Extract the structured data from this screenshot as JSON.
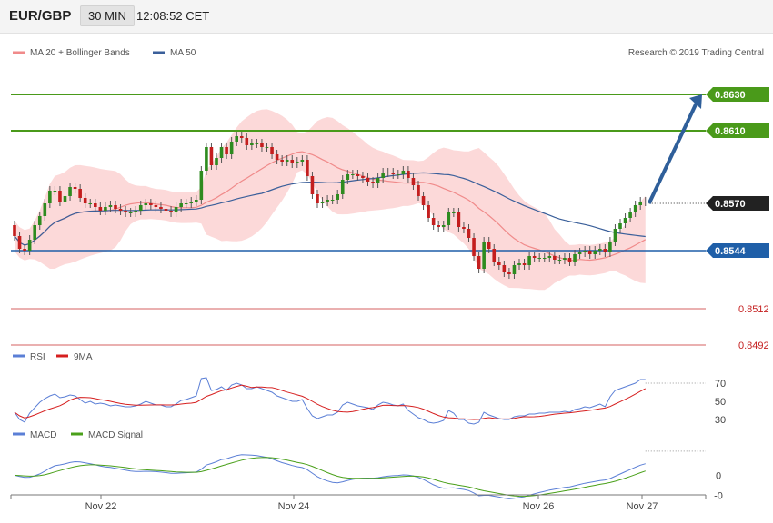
{
  "header": {
    "symbol": "EUR/GBP",
    "timeframe": "30 MIN",
    "time": "12:08:52 CET"
  },
  "legend": {
    "main": [
      {
        "label": "MA 20 + Bollinger Bands",
        "color": "#f08a8a"
      },
      {
        "label": "MA 50",
        "color": "#3a5f9a"
      }
    ],
    "copyright": "Research © 2019 Trading Central",
    "rsi": [
      {
        "label": "RSI",
        "color": "#5b7fd6"
      },
      {
        "label": "9MA",
        "color": "#d61f1f"
      }
    ],
    "macd": [
      {
        "label": "MACD",
        "color": "#5b7fd6"
      },
      {
        "label": "MACD Signal",
        "color": "#4aa01a"
      }
    ]
  },
  "x_labels": [
    "Nov 22",
    "Nov 24",
    "Nov 26",
    "Nov 27"
  ],
  "colors": {
    "bull": "#2e8b1f",
    "bear": "#c41e1e",
    "band": "#fbd2d2",
    "ma20": "#f08a8a",
    "ma50": "#3a5f9a",
    "resistance": "#4a9a1a",
    "pivot": "#1f5fa8",
    "support": "#c41e1e",
    "last": "#222222",
    "arrow": "#2f5f9a"
  },
  "chart_data": {
    "type": "candlestick",
    "ylim": [
      0.8482,
      0.8643
    ],
    "levels": [
      {
        "type": "resistance",
        "value": 0.863,
        "label": "0.8630"
      },
      {
        "type": "resistance",
        "value": 0.861,
        "label": "0.8610"
      },
      {
        "type": "last",
        "value": 0.857,
        "label": "0.8570"
      },
      {
        "type": "pivot",
        "value": 0.8544,
        "label": "0.8544"
      },
      {
        "type": "support",
        "value": 0.8512,
        "label": "0.8512"
      },
      {
        "type": "support",
        "value": 0.8492,
        "label": "0.8492"
      }
    ],
    "forecast_arrow": {
      "from": 0.857,
      "to": 0.863
    },
    "closes": [
      0.8552,
      0.8545,
      0.8544,
      0.855,
      0.8558,
      0.8563,
      0.857,
      0.8577,
      0.8577,
      0.8571,
      0.8574,
      0.8579,
      0.8578,
      0.8573,
      0.857,
      0.857,
      0.8568,
      0.8566,
      0.8568,
      0.8569,
      0.8567,
      0.8566,
      0.8565,
      0.8565,
      0.8566,
      0.8569,
      0.857,
      0.8569,
      0.8568,
      0.8567,
      0.8566,
      0.8565,
      0.8568,
      0.857,
      0.857,
      0.8571,
      0.8572,
      0.8588,
      0.8601,
      0.8591,
      0.8595,
      0.8601,
      0.8597,
      0.8604,
      0.8607,
      0.8606,
      0.8602,
      0.8603,
      0.8603,
      0.8601,
      0.8601,
      0.8597,
      0.8594,
      0.8593,
      0.8594,
      0.8592,
      0.8593,
      0.8594,
      0.8585,
      0.8575,
      0.857,
      0.8571,
      0.8572,
      0.8572,
      0.8575,
      0.8583,
      0.8586,
      0.8586,
      0.8585,
      0.8584,
      0.8582,
      0.8581,
      0.8584,
      0.8587,
      0.8587,
      0.8586,
      0.8586,
      0.8588,
      0.8584,
      0.858,
      0.8574,
      0.8569,
      0.8562,
      0.8558,
      0.8557,
      0.8558,
      0.8565,
      0.8565,
      0.8557,
      0.8556,
      0.8551,
      0.8541,
      0.8534,
      0.8549,
      0.8545,
      0.8538,
      0.8536,
      0.8532,
      0.8531,
      0.8536,
      0.8537,
      0.8536,
      0.8541,
      0.854,
      0.854,
      0.854,
      0.8541,
      0.8539,
      0.8539,
      0.854,
      0.8538,
      0.8542,
      0.8543,
      0.8544,
      0.8542,
      0.8544,
      0.8545,
      0.8543,
      0.8549,
      0.8556,
      0.8559,
      0.8562,
      0.8565,
      0.8569,
      0.8571,
      0.8571
    ],
    "rsi": {
      "ylim": [
        18,
        88
      ],
      "ticks": [
        30,
        50,
        70
      ],
      "values": [
        38,
        30,
        27,
        37,
        43,
        49,
        53,
        56,
        58,
        54,
        55,
        57,
        56,
        52,
        48,
        50,
        47,
        48,
        47,
        45,
        46,
        45,
        44,
        44,
        45,
        47,
        50,
        48,
        46,
        46,
        44,
        44,
        47,
        51,
        52,
        54,
        56,
        75,
        76,
        62,
        63,
        66,
        62,
        68,
        70,
        68,
        64,
        64,
        66,
        64,
        62,
        60,
        56,
        54,
        52,
        50,
        50,
        52,
        42,
        34,
        31,
        33,
        35,
        35,
        38,
        46,
        49,
        47,
        45,
        44,
        43,
        41,
        46,
        49,
        48,
        46,
        45,
        47,
        40,
        36,
        32,
        30,
        27,
        26,
        27,
        29,
        40,
        37,
        30,
        30,
        26,
        25,
        27,
        38,
        35,
        33,
        31,
        30,
        30,
        33,
        34,
        34,
        36,
        36,
        37,
        37,
        38,
        38,
        38,
        39,
        38,
        41,
        42,
        44,
        43,
        45,
        47,
        44,
        55,
        62,
        64,
        66,
        68,
        70,
        74,
        74
      ]
    },
    "macd": {
      "ylim": [
        -0.0012,
        0.0016
      ],
      "ticks": [
        {
          "v": 0,
          "label": "0"
        },
        {
          "v": -0.001,
          "label": "-0"
        }
      ]
    }
  }
}
